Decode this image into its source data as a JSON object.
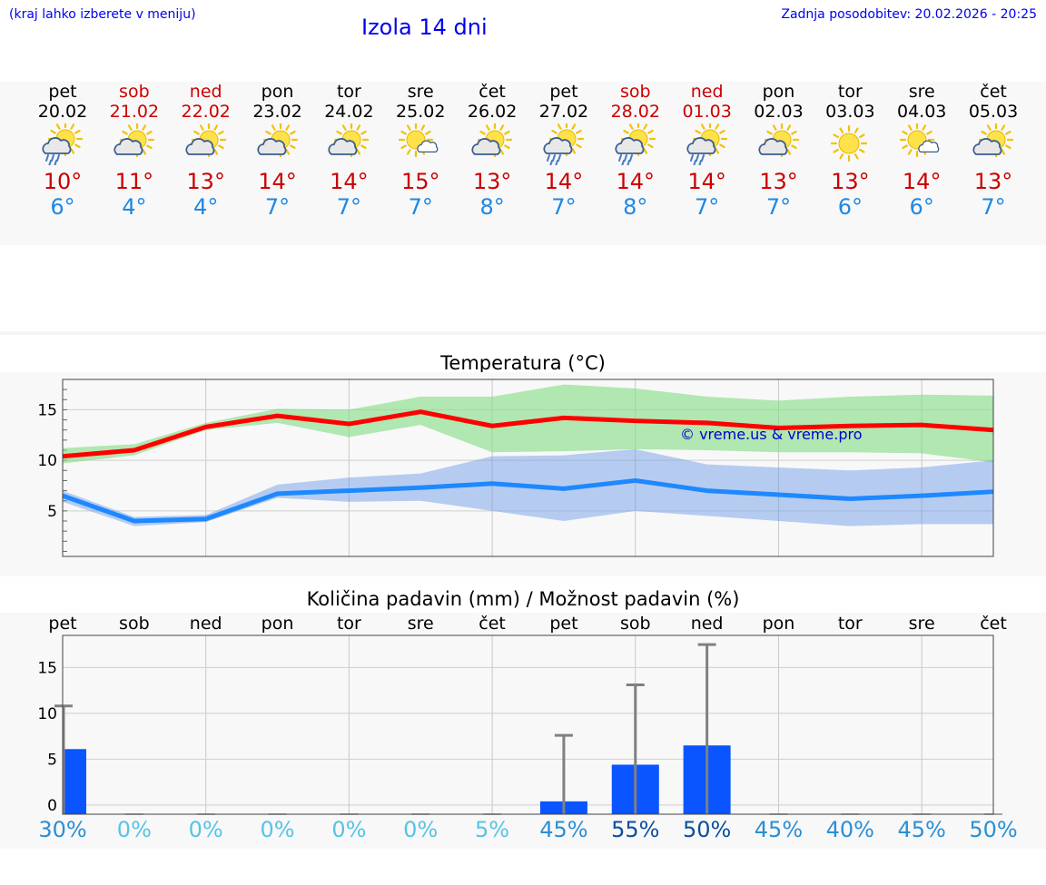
{
  "header": {
    "note": "(kraj lahko izberete v meniju)",
    "title": "Izola 14 dni",
    "updated": "Zadnja posodobitev: 20.02.2026 - 20:25"
  },
  "forecast": {
    "days": [
      {
        "name": "pet",
        "date": "20.02",
        "weekend": false,
        "icon": "sun-cloud-rain-icon",
        "max": "10°",
        "min": "6°"
      },
      {
        "name": "sob",
        "date": "21.02",
        "weekend": true,
        "icon": "sun-cloud-icon",
        "max": "11°",
        "min": "4°"
      },
      {
        "name": "ned",
        "date": "22.02",
        "weekend": true,
        "icon": "sun-cloud-icon",
        "max": "13°",
        "min": "4°"
      },
      {
        "name": "pon",
        "date": "23.02",
        "weekend": false,
        "icon": "sun-cloud-icon",
        "max": "14°",
        "min": "7°"
      },
      {
        "name": "tor",
        "date": "24.02",
        "weekend": false,
        "icon": "sun-cloud-icon",
        "max": "14°",
        "min": "7°"
      },
      {
        "name": "sre",
        "date": "25.02",
        "weekend": false,
        "icon": "sun-small-cloud-icon",
        "max": "15°",
        "min": "7°"
      },
      {
        "name": "čet",
        "date": "26.02",
        "weekend": false,
        "icon": "sun-cloud-icon",
        "max": "13°",
        "min": "8°"
      },
      {
        "name": "pet",
        "date": "27.02",
        "weekend": false,
        "icon": "sun-cloud-rain-icon",
        "max": "14°",
        "min": "7°"
      },
      {
        "name": "sob",
        "date": "28.02",
        "weekend": true,
        "icon": "sun-cloud-rain-icon",
        "max": "14°",
        "min": "8°"
      },
      {
        "name": "ned",
        "date": "01.03",
        "weekend": true,
        "icon": "sun-cloud-rain-icon",
        "max": "14°",
        "min": "7°"
      },
      {
        "name": "pon",
        "date": "02.03",
        "weekend": false,
        "icon": "sun-cloud-icon",
        "max": "13°",
        "min": "7°"
      },
      {
        "name": "tor",
        "date": "03.03",
        "weekend": false,
        "icon": "sun-icon",
        "max": "13°",
        "min": "6°"
      },
      {
        "name": "sre",
        "date": "04.03",
        "weekend": false,
        "icon": "sun-small-cloud-icon",
        "max": "14°",
        "min": "6°"
      },
      {
        "name": "čet",
        "date": "05.03",
        "weekend": false,
        "icon": "sun-cloud-icon",
        "max": "13°",
        "min": "7°"
      }
    ]
  },
  "chart_data": [
    {
      "type": "line",
      "title": "Temperatura (°C)",
      "ylim": [
        0.5,
        18
      ],
      "yticks": [
        "5",
        "10",
        "15"
      ],
      "categories": [
        "20.02",
        "21.02",
        "22.02",
        "23.02",
        "24.02",
        "25.02",
        "26.02",
        "27.02",
        "28.02",
        "01.03",
        "02.03",
        "03.03",
        "04.03",
        "05.03"
      ],
      "series": [
        {
          "name": "max_temp",
          "color": "#ff0000",
          "values": [
            10.4,
            11.0,
            13.3,
            14.4,
            13.6,
            14.8,
            13.4,
            14.2,
            13.9,
            13.7,
            13.2,
            13.4,
            13.5,
            13.0
          ]
        },
        {
          "name": "max_range_low",
          "values": [
            9.7,
            10.5,
            13.0,
            13.7,
            12.3,
            13.5,
            10.8,
            10.9,
            11.1,
            11.0,
            10.8,
            10.8,
            10.7,
            9.8
          ]
        },
        {
          "name": "max_range_high",
          "values": [
            11.2,
            11.6,
            13.7,
            15.1,
            15.0,
            16.3,
            16.3,
            17.5,
            17.1,
            16.3,
            15.9,
            16.3,
            16.5,
            16.4
          ]
        },
        {
          "name": "min_temp",
          "color": "#1e88ff",
          "values": [
            6.5,
            4.0,
            4.2,
            6.7,
            7.0,
            7.3,
            7.7,
            7.2,
            8.0,
            7.0,
            6.6,
            6.2,
            6.5,
            6.9
          ]
        },
        {
          "name": "min_range_low",
          "values": [
            5.9,
            3.5,
            3.9,
            6.3,
            5.9,
            6.0,
            5.0,
            4.0,
            5.0,
            4.5,
            4.0,
            3.5,
            3.7,
            3.7
          ]
        },
        {
          "name": "min_range_high",
          "values": [
            7.0,
            4.4,
            4.6,
            7.6,
            8.3,
            8.7,
            10.4,
            10.5,
            11.1,
            9.6,
            9.3,
            9.0,
            9.3,
            10.0
          ]
        }
      ],
      "annotation": "© vreme.us & vreme.pro"
    },
    {
      "type": "bar",
      "title": "Količina padavin (mm) / Možnost padavin (%)",
      "ylim": [
        -1,
        18.5
      ],
      "yticks": [
        "0",
        "5",
        "10",
        "15"
      ],
      "categories": [
        "pet",
        "sob",
        "ned",
        "pon",
        "tor",
        "sre",
        "čet",
        "pet",
        "sob",
        "ned",
        "pon",
        "tor",
        "sre",
        "čet"
      ],
      "values": [
        6.1,
        0,
        0,
        0,
        0,
        0,
        0,
        0.4,
        4.4,
        6.5,
        0,
        0,
        0,
        0
      ],
      "error_high": [
        10.8,
        0,
        0,
        0,
        0,
        0,
        0,
        7.6,
        13.1,
        17.5,
        0,
        0,
        0,
        0
      ],
      "chance": [
        "30%",
        "0%",
        "0%",
        "0%",
        "0%",
        "0%",
        "5%",
        "45%",
        "55%",
        "50%",
        "45%",
        "40%",
        "45%",
        "50%"
      ]
    }
  ]
}
